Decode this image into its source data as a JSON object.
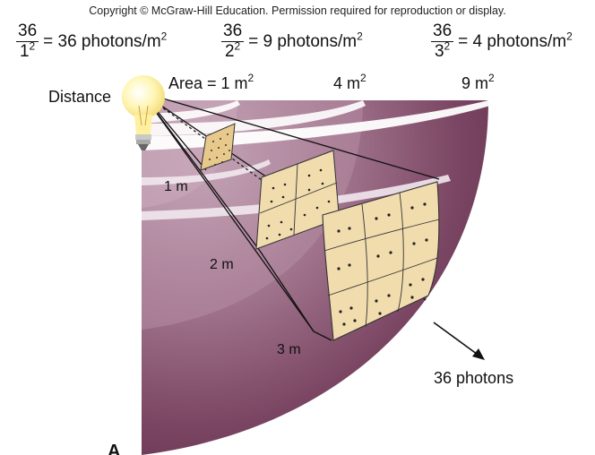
{
  "copyright": "Copyright © McGraw-Hill Education. Permission required for reproduction or display.",
  "formulas": [
    {
      "numerator": "36",
      "denominator_base": "1",
      "exponent": "2",
      "result": "= 36 photons/m",
      "unit_exp": "2"
    },
    {
      "numerator": "36",
      "denominator_base": "2",
      "exponent": "2",
      "result": "= 9 photons/m",
      "unit_exp": "2"
    },
    {
      "numerator": "36",
      "denominator_base": "3",
      "exponent": "2",
      "result": "= 4 photons/m",
      "unit_exp": "2"
    }
  ],
  "labels": {
    "distance": "Distance",
    "area_prefix": "Area = 1 m",
    "area_1_exp": "2",
    "area_4": "4 m",
    "area_4_exp": "2",
    "area_9": "9 m",
    "area_9_exp": "2",
    "d1": "1 m",
    "d2": "2 m",
    "d3": "3 m",
    "photons": "36 photons",
    "panel": "A"
  },
  "colors": {
    "shell_dark": "#5e2f48",
    "shell_mid": "#8a5a72",
    "shell_light": "#b89aab",
    "patch": "#f1dcae",
    "bulb": "#fff3a8"
  }
}
